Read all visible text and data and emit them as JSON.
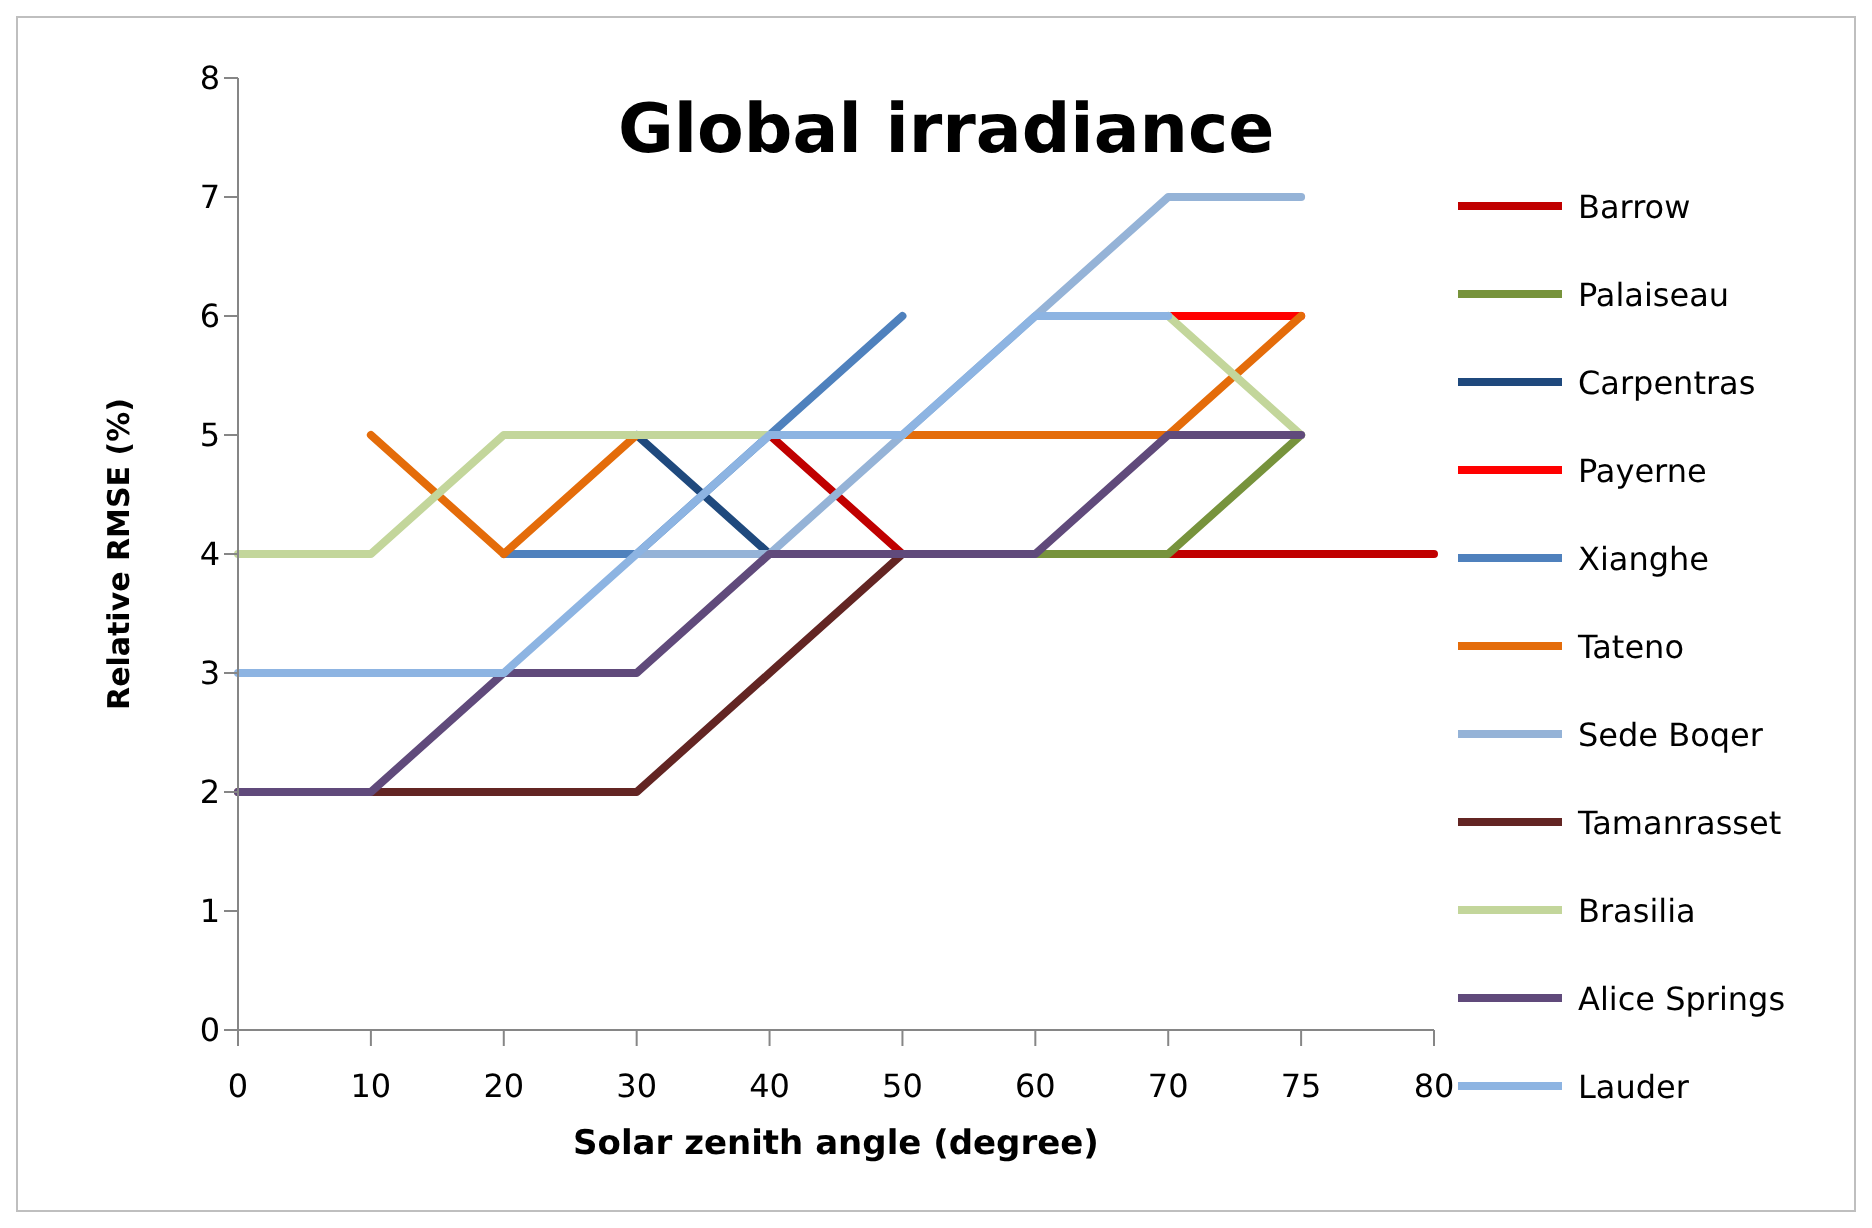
{
  "chart_data": {
    "type": "line",
    "title": "Global irradiance",
    "xlabel": "Solar zenith angle (degree)",
    "ylabel": "Relative RMSE  (%)",
    "categories": [
      "0",
      "10",
      "20",
      "30",
      "40",
      "50",
      "60",
      "70",
      "75",
      "80"
    ],
    "ylim": [
      0,
      8
    ],
    "yticks": [
      0,
      1,
      2,
      3,
      4,
      5,
      6,
      7,
      8
    ],
    "grid": false,
    "legend": "right",
    "marker": "none",
    "line_style": "solid",
    "series": [
      {
        "name": "Barrow",
        "color": "#c00000",
        "values": [
          null,
          null,
          null,
          null,
          5,
          4,
          4,
          4,
          4,
          4
        ]
      },
      {
        "name": "Palaiseau",
        "color": "#77933c",
        "values": [
          null,
          null,
          null,
          null,
          null,
          null,
          4,
          4,
          5,
          null
        ]
      },
      {
        "name": "Carpentras",
        "color": "#1f497d",
        "values": [
          null,
          null,
          null,
          5,
          4,
          null,
          null,
          null,
          null,
          null
        ]
      },
      {
        "name": "Payerne",
        "color": "#ff0000",
        "values": [
          null,
          null,
          null,
          null,
          null,
          null,
          null,
          6,
          6,
          null
        ]
      },
      {
        "name": "Xianghe",
        "color": "#4f81bd",
        "values": [
          null,
          null,
          4,
          4,
          5,
          6,
          null,
          null,
          null,
          null
        ]
      },
      {
        "name": "Tateno",
        "color": "#e46c0a",
        "values": [
          null,
          5,
          4,
          5,
          5,
          5,
          5,
          5,
          6,
          null
        ]
      },
      {
        "name": "Sede Boqer",
        "color": "#95b3d7",
        "values": [
          null,
          null,
          null,
          4,
          4,
          5,
          6,
          7,
          7,
          null
        ]
      },
      {
        "name": "Tamanrasset",
        "color": "#632523",
        "values": [
          2,
          2,
          2,
          2,
          3,
          4,
          null,
          null,
          null,
          null
        ]
      },
      {
        "name": "Brasilia",
        "color": "#c3d69b",
        "values": [
          4,
          4,
          5,
          5,
          5,
          5,
          null,
          6,
          5,
          null
        ]
      },
      {
        "name": "Alice Springs",
        "color": "#604a7b",
        "values": [
          2,
          2,
          3,
          3,
          4,
          4,
          4,
          5,
          5,
          null
        ]
      },
      {
        "name": "Lauder",
        "color": "#8db4e2",
        "values": [
          3,
          3,
          3,
          4,
          5,
          5,
          6,
          6,
          null,
          null
        ]
      }
    ]
  }
}
